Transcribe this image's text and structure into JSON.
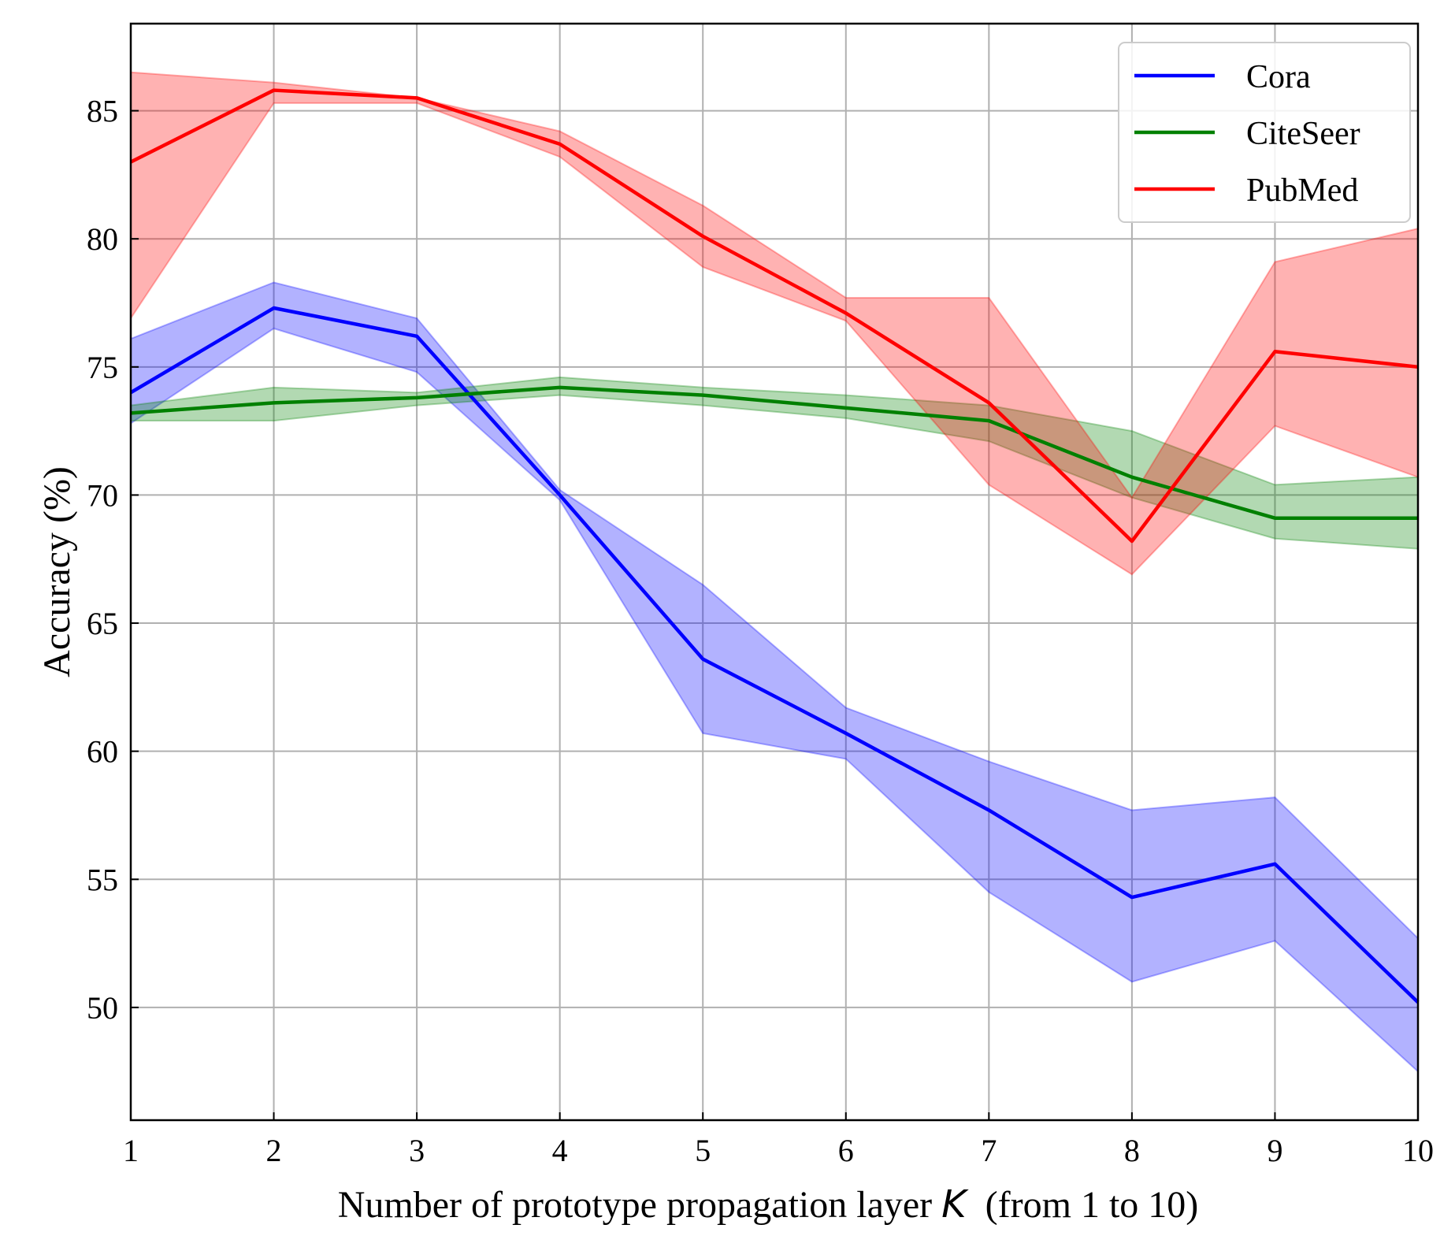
{
  "chart_data": {
    "type": "line",
    "title": "",
    "xlabel": "Number of prototype propagation layer K  (from 1 to 10)",
    "xlabel_parts": {
      "prefix": "Number of prototype propagation layer ",
      "variable": "K",
      "suffix": "  (from 1 to 10)"
    },
    "ylabel": "Accuracy (%)",
    "xlim": [
      1,
      10
    ],
    "ylim": [
      45.6,
      88.4
    ],
    "x": [
      1,
      2,
      3,
      4,
      5,
      6,
      7,
      8,
      9,
      10
    ],
    "x_ticks": [
      "1",
      "2",
      "3",
      "4",
      "5",
      "6",
      "7",
      "8",
      "9",
      "10"
    ],
    "y_ticks": [
      50,
      55,
      60,
      65,
      70,
      75,
      80,
      85
    ],
    "y_tick_labels": [
      "50",
      "55",
      "60",
      "65",
      "70",
      "75",
      "80",
      "85"
    ],
    "grid": true,
    "legend_position": "top-right",
    "series": [
      {
        "name": "Cora",
        "color": "#0000ff",
        "band_color": "#0000ff",
        "values": [
          74.0,
          77.3,
          76.2,
          70.0,
          63.6,
          60.7,
          57.7,
          54.3,
          55.6,
          50.2
        ],
        "lower": [
          72.8,
          76.5,
          74.8,
          69.8,
          60.7,
          59.7,
          54.5,
          51.0,
          52.6,
          47.5
        ],
        "upper": [
          76.1,
          78.3,
          76.9,
          70.2,
          66.5,
          61.7,
          59.6,
          57.7,
          58.2,
          52.7
        ]
      },
      {
        "name": "CiteSeer",
        "color": "#008000",
        "band_color": "#008000",
        "values": [
          73.2,
          73.6,
          73.8,
          74.2,
          73.9,
          73.4,
          72.9,
          70.7,
          69.1,
          69.1
        ],
        "lower": [
          72.9,
          72.9,
          73.5,
          73.9,
          73.5,
          73.0,
          72.1,
          69.9,
          68.3,
          67.9
        ],
        "upper": [
          73.5,
          74.2,
          74.0,
          74.6,
          74.2,
          73.9,
          73.5,
          72.5,
          70.4,
          70.7
        ]
      },
      {
        "name": "PubMed",
        "color": "#ff0000",
        "band_color": "#ff0000",
        "values": [
          83.0,
          85.8,
          85.5,
          83.7,
          80.1,
          77.1,
          73.6,
          68.2,
          75.6,
          75.0
        ],
        "lower": [
          76.9,
          85.3,
          85.3,
          83.2,
          78.9,
          76.8,
          70.4,
          66.9,
          72.7,
          70.7
        ],
        "upper": [
          86.5,
          86.1,
          85.5,
          84.2,
          81.3,
          77.7,
          77.7,
          69.9,
          79.1,
          80.4
        ]
      }
    ]
  }
}
